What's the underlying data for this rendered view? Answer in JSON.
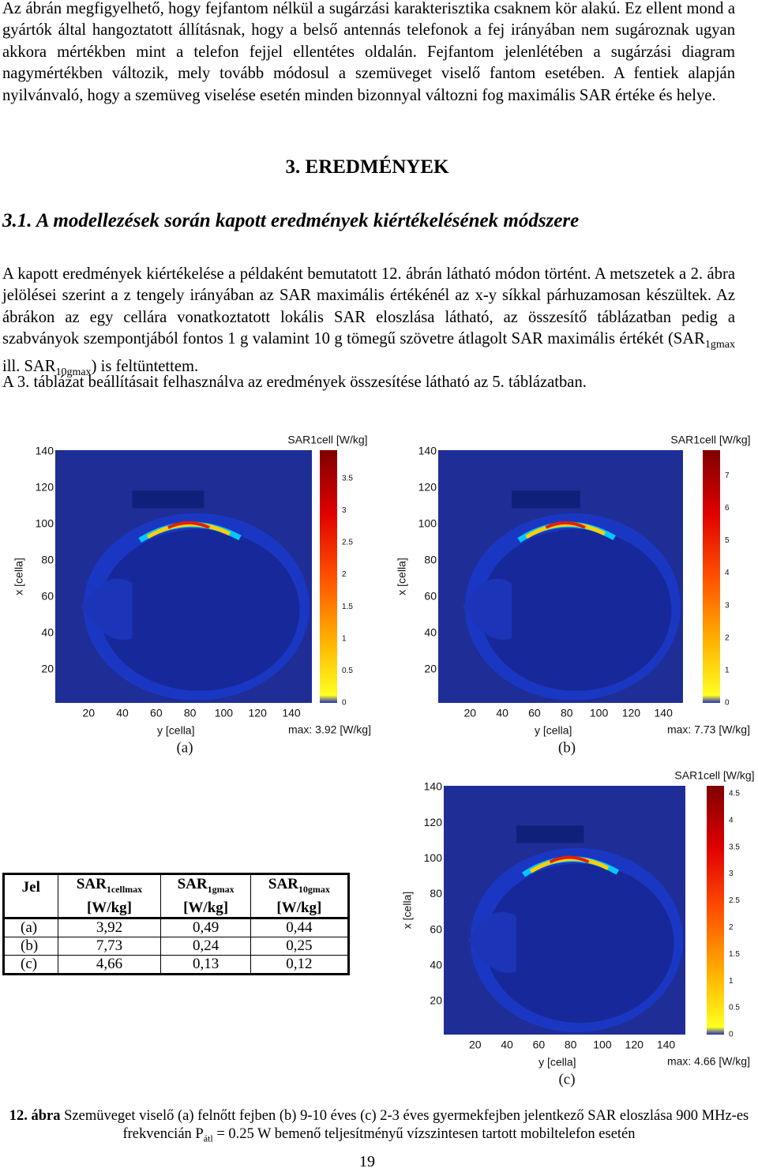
{
  "intro": "Az ábrán megfigyelhető, hogy fejfantom nélkül a sugárzási karakterisztika csaknem kör alakú. Ez ellent mond a gyártók által hangoztatott állításnak, hogy a belső antennás telefonok a fej irányában nem sugároznak ugyan akkora mértékben mint a telefon fejjel ellentétes oldalán. Fejfantom jelenlétében a sugárzási diagram nagymértékben változik, mely tovább módosul a szemüveget viselő fantom esetében. A fentiek alapján nyilvánvaló, hogy a szemüveg viselése esetén minden bizonnyal változni fog maximális SAR értéke és helye.",
  "section_heading": "3. EREDMÉNYEK",
  "subsection_heading": "3.1. A modellezések során kapott eredmények kiértékelésének módszere",
  "paragraph": {
    "part1": "A kapott eredmények kiértékelése a példaként bemutatott 12. ábrán látható módon történt. A metszetek a 2. ábra jelölései szerint a z tengely irányában az SAR maximális értékénél az x-y síkkal párhuzamosan készültek. Az ábrákon az egy cellára vonatkoztatott lokális SAR eloszlása látható, az összesítő táblázatban pedig a szabványok szempontjából fontos 1 g valamint 10 g tömegű szövetre átlagolt SAR maximális értékét (SAR",
    "sub1": "1gmax",
    "part2": " ill. SAR",
    "sub2": "10gmax",
    "part3": ") is feltüntettem."
  },
  "paragraph2": "A 3. táblázat beállításait felhasználva az eredmények összesítése látható az 5. táblázatban.",
  "figures": [
    {
      "label": "(a)",
      "colorbar_title": "SAR1cell [W/kg]",
      "colorbar_ticks": [
        "0",
        "0.5",
        "1",
        "1.5",
        "2",
        "2.5",
        "3",
        "3.5"
      ],
      "left_ticks": [
        "140",
        "120",
        "100",
        "80",
        "60",
        "40",
        "20"
      ],
      "bottom_ticks": [
        "20",
        "40",
        "60",
        "80",
        "100",
        "120",
        "140"
      ],
      "left_label": "x [cella]",
      "bottom_label": "y [cella]",
      "max_label": "max: 3.92 [W/kg]"
    },
    {
      "label": "(b)",
      "colorbar_title": "SAR1cell [W/kg]",
      "colorbar_ticks": [
        "0",
        "1",
        "2",
        "3",
        "4",
        "5",
        "6",
        "7"
      ],
      "left_ticks": [
        "140",
        "120",
        "100",
        "80",
        "60",
        "40",
        "20"
      ],
      "bottom_ticks": [
        "20",
        "40",
        "60",
        "80",
        "100",
        "120",
        "140"
      ],
      "left_label": "x [cella]",
      "bottom_label": "y [cella]",
      "max_label": "max: 7.73 [W/kg]"
    },
    {
      "label": "(c)",
      "colorbar_title": "SAR1cell [W/kg]",
      "colorbar_ticks": [
        "0",
        "0.5",
        "1",
        "1.5",
        "2",
        "2.5",
        "3",
        "3.5",
        "4",
        "4.5"
      ],
      "left_ticks": [
        "140",
        "120",
        "100",
        "80",
        "60",
        "40",
        "20"
      ],
      "bottom_ticks": [
        "20",
        "40",
        "60",
        "80",
        "100",
        "120",
        "140"
      ],
      "left_label": "x [cella]",
      "bottom_label": "y [cella]",
      "max_label": "max: 4.66 [W/kg]"
    }
  ],
  "table": {
    "header": [
      {
        "main": "Jel"
      },
      {
        "main": "SAR",
        "sub": "1cellmax",
        "unit": "[W/kg]"
      },
      {
        "main": "SAR",
        "sub": "1gmax",
        "unit": "[W/kg]"
      },
      {
        "main": "SAR",
        "sub": "10gmax",
        "unit": "[W/kg]"
      }
    ],
    "rows": [
      [
        "(a)",
        "3,92",
        "0,49",
        "0,44"
      ],
      [
        "(b)",
        "7,73",
        "0,24",
        "0,25"
      ],
      [
        "(c)",
        "4,66",
        "0,13",
        "0,12"
      ]
    ]
  },
  "caption": {
    "label": "12. ábra",
    "text1": " Szemüveget viselő (a) felnőtt fejben (b) 9-10 éves (c) 2-3 éves gyermekfejben jelentkező SAR eloszlása 900 MHz-es frekvencián P",
    "sub": "átl",
    "text2": " = 0.25 W bemenő teljesítményű vízszintesen tartott mobiltelefon esetén"
  },
  "page_number": "19"
}
